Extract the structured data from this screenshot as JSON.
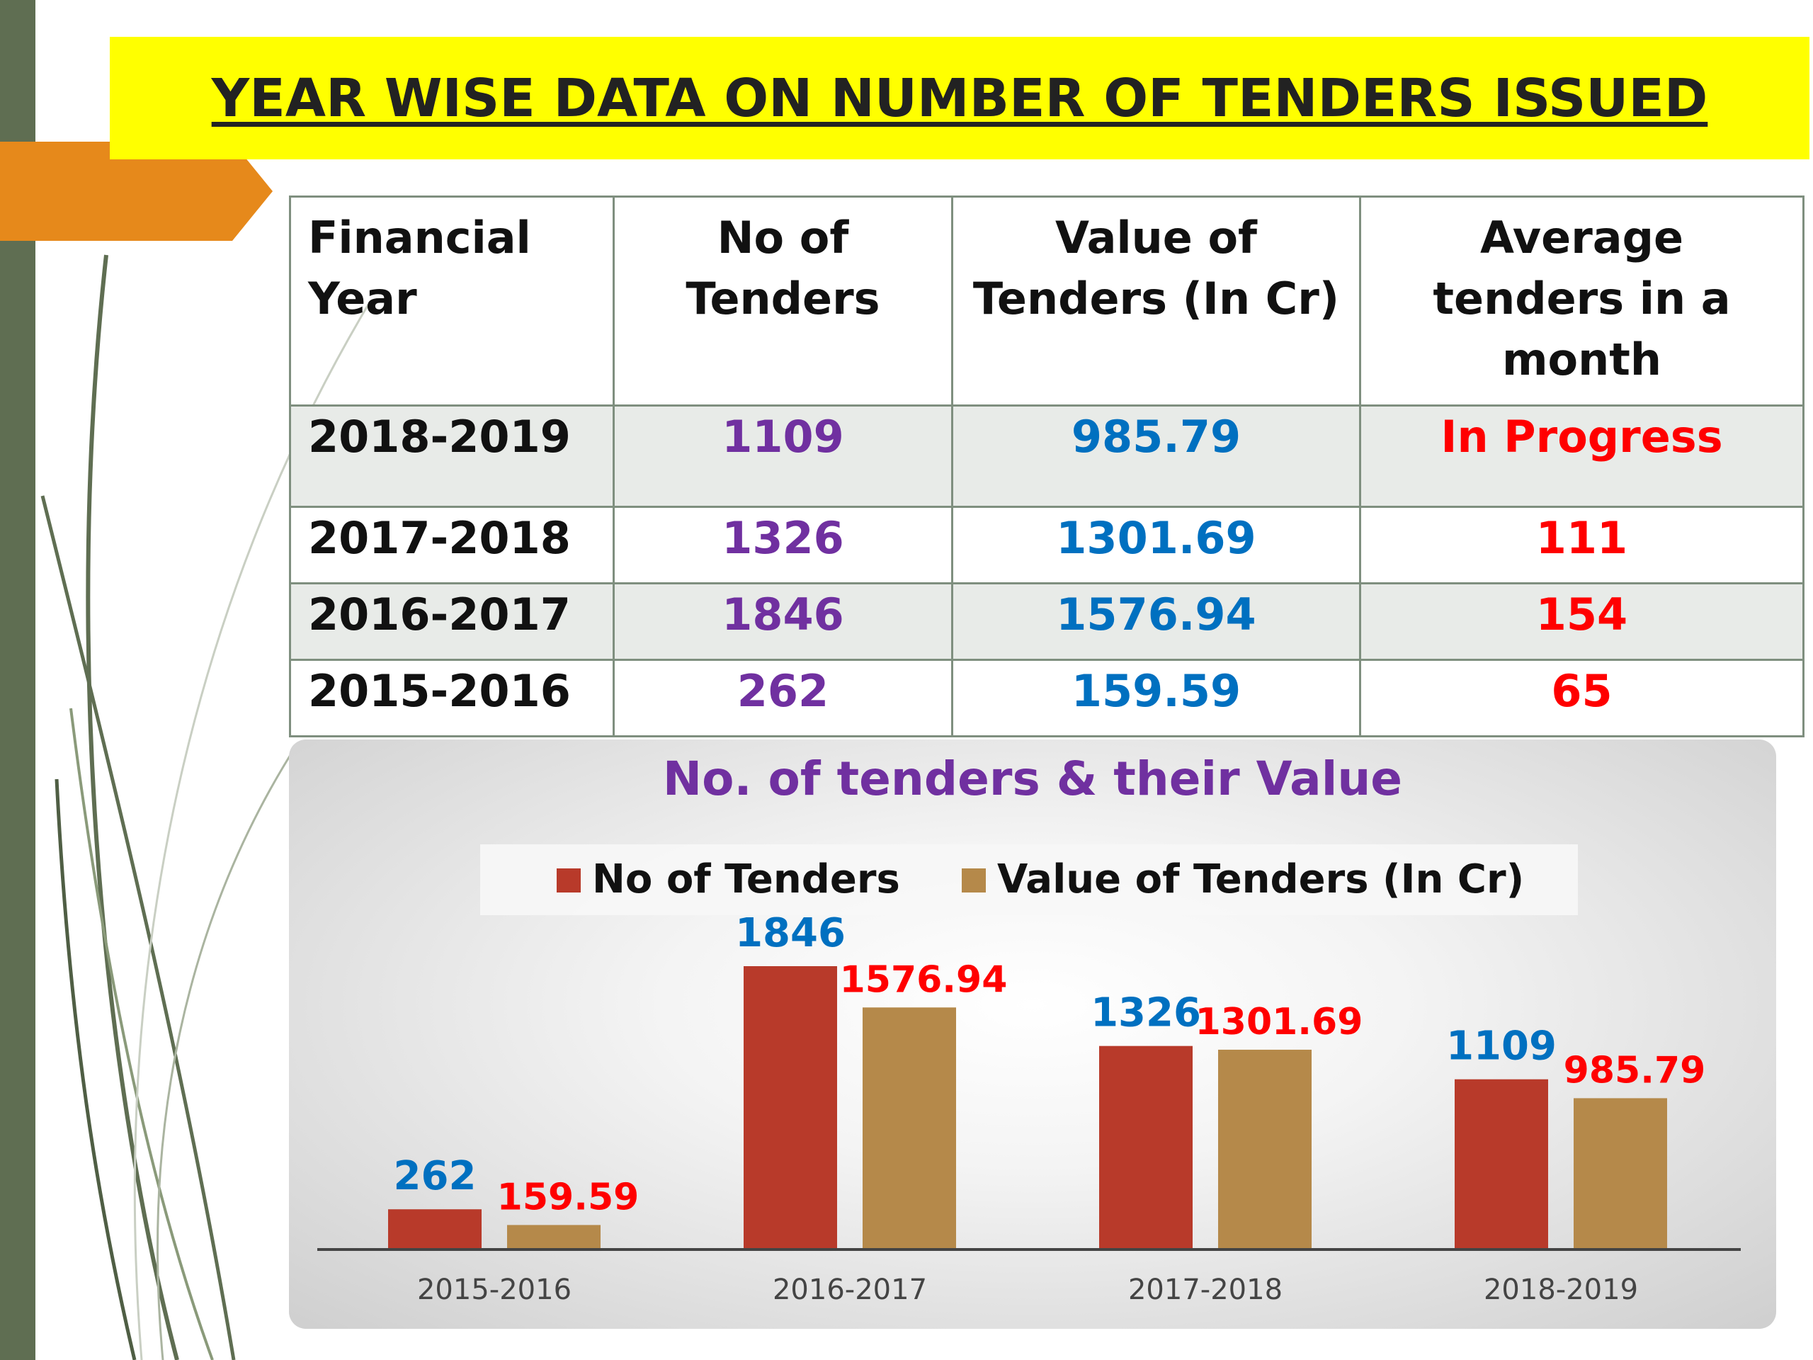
{
  "title": "YEAR WISE DATA ON NUMBER OF TENDERS ISSUED",
  "table": {
    "headers": {
      "financial_year": [
        "Financial",
        "Year"
      ],
      "no_of_tenders": [
        "No of",
        "Tenders"
      ],
      "value_of_tenders": [
        "Value of",
        "Tenders (In Cr)"
      ],
      "average": [
        "Average",
        "tenders in a",
        "month"
      ]
    },
    "rows": [
      {
        "year": "2018-2019",
        "count": "1109",
        "value": "985.79",
        "avg": "In Progress"
      },
      {
        "year": "2017-2018",
        "count": "1326",
        "value": "1301.69",
        "avg": "111"
      },
      {
        "year": "2016-2017",
        "count": "1846",
        "value": "1576.94",
        "avg": "154"
      },
      {
        "year": "2015-2016",
        "count": "262",
        "value": "159.59",
        "avg": "65"
      }
    ]
  },
  "colors": {
    "title_bg": "#ffff00",
    "count_text": "#7030a0",
    "value_text": "#0070c0",
    "avg_text": "#ff0000",
    "series_tenders": "#b83a2a",
    "series_value": "#b5894a",
    "chart_title": "#7030a0",
    "label_tenders": "#0070c0",
    "label_value": "#ff0000"
  },
  "chart_data": {
    "type": "bar",
    "title": "No. of tenders & their Value",
    "categories": [
      "2015-2016",
      "2016-2017",
      "2017-2018",
      "2018-2019"
    ],
    "series": [
      {
        "name": "No of Tenders",
        "values": [
          262,
          1846,
          1326,
          1109
        ],
        "labels": [
          "262",
          "1846",
          "1326",
          "1109"
        ]
      },
      {
        "name": "Value of Tenders (In Cr)",
        "values": [
          159.59,
          1576.94,
          1301.69,
          985.79
        ],
        "labels": [
          "159.59",
          "1576.94",
          "1301.69",
          "985.79"
        ]
      }
    ],
    "ylim": [
      0,
      1846
    ],
    "legend_position": "top",
    "grid": false
  }
}
